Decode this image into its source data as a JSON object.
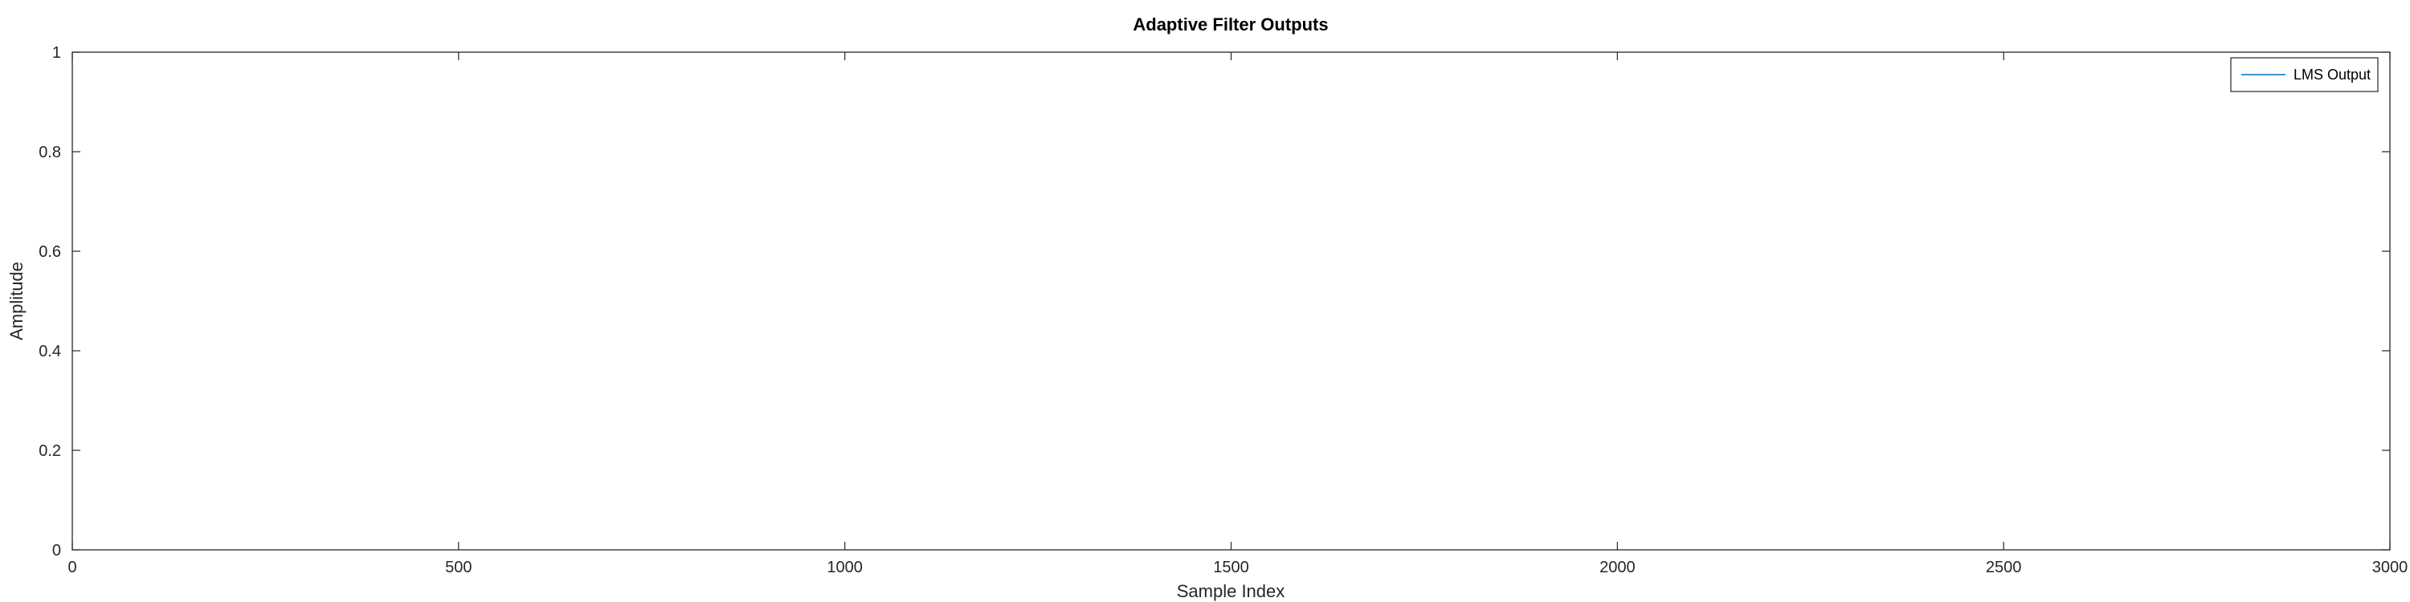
{
  "chart_data": {
    "type": "line",
    "title": "Adaptive Filter Outputs",
    "xlabel": "Sample Index",
    "ylabel": "Amplitude",
    "xlim": [
      0,
      3000
    ],
    "ylim": [
      0,
      1
    ],
    "xticks": [
      0,
      500,
      1000,
      1500,
      2000,
      2500,
      3000
    ],
    "yticks": [
      0,
      0.2,
      0.4,
      0.6,
      0.8,
      1
    ],
    "xtick_labels": [
      "0",
      "500",
      "1000",
      "1500",
      "2000",
      "2500",
      "3000"
    ],
    "ytick_labels": [
      "0",
      "0.2",
      "0.4",
      "0.6",
      "0.8",
      "1"
    ],
    "grid": false,
    "legend_position": "top-right",
    "series": [
      {
        "name": "LMS Output",
        "color": "#0072bd",
        "x": [],
        "y": []
      }
    ]
  }
}
